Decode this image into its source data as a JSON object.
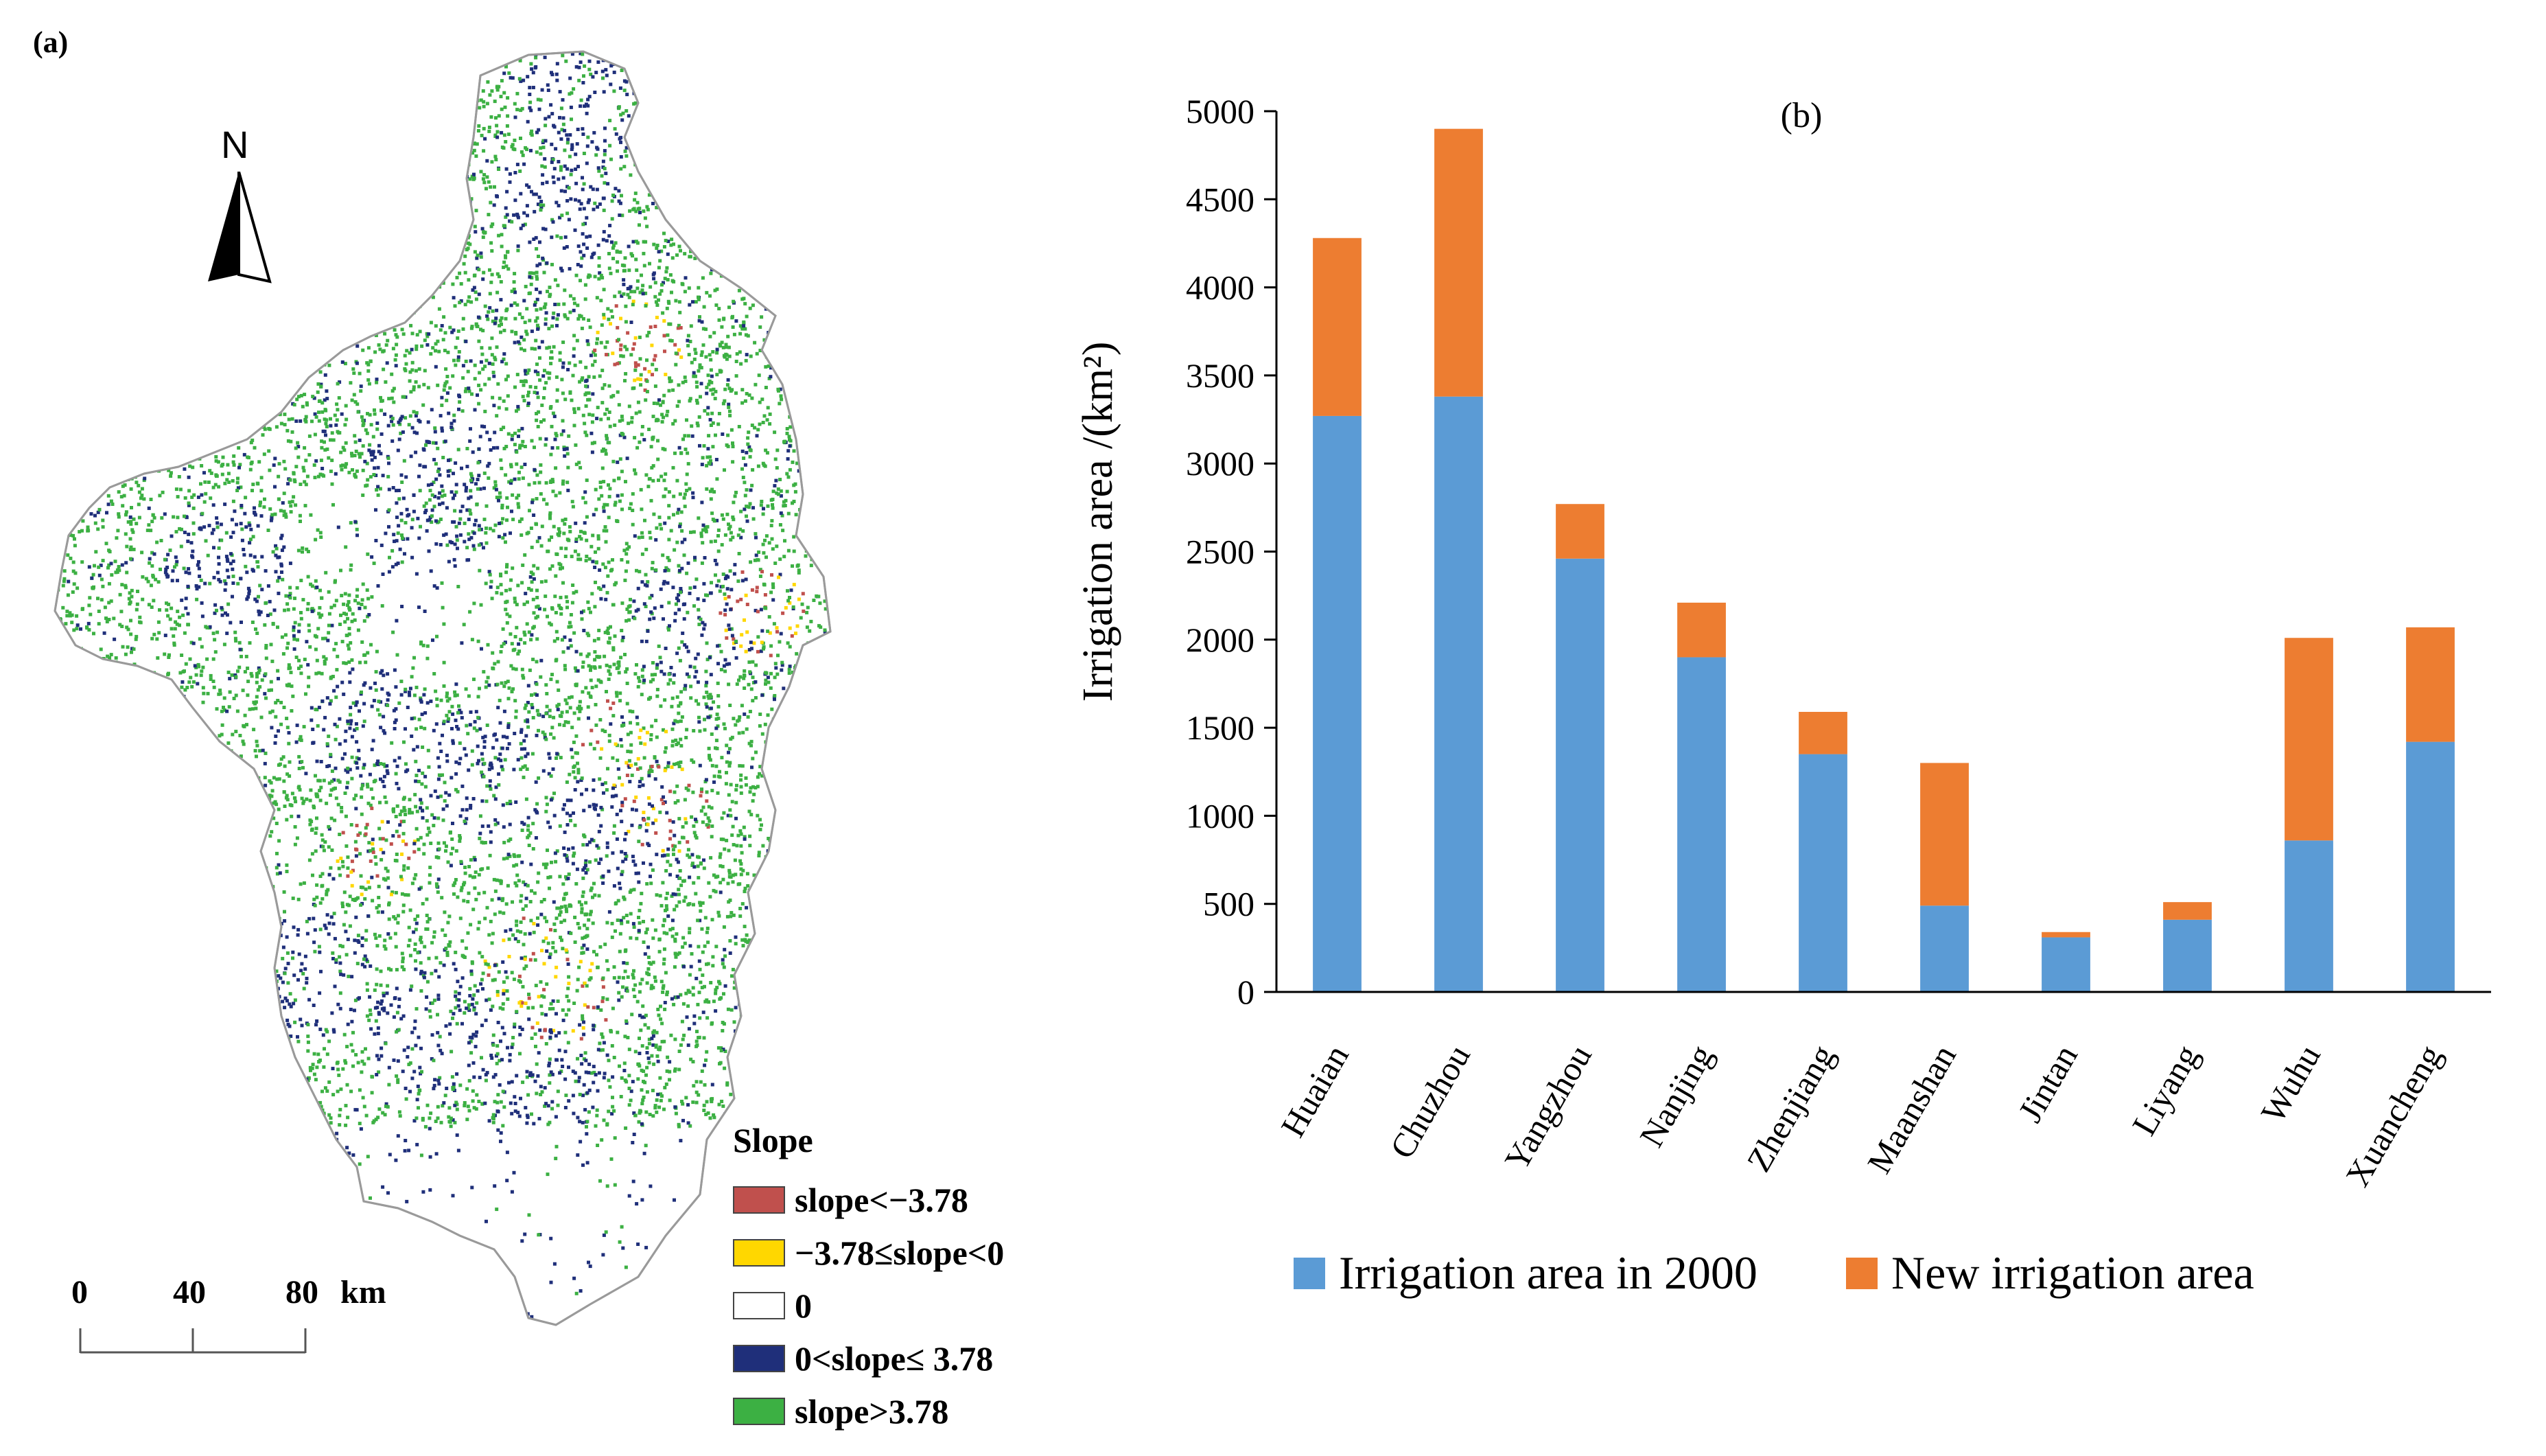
{
  "panel_a": {
    "label": "(a)",
    "north": "N",
    "scale_bar": {
      "ticks": [
        "0",
        "40",
        "80"
      ],
      "unit": "km"
    },
    "legend": {
      "title": "Slope",
      "items": [
        {
          "label": "slope<−3.78",
          "color": "#c0504d"
        },
        {
          "label": "−3.78≤slope<0",
          "color": "#ffd700"
        },
        {
          "label": "0",
          "color": "#ffffff"
        },
        {
          "label": "0<slope≤ 3.78",
          "color": "#1f2f7a"
        },
        {
          "label": "slope>3.78",
          "color": "#3cb043"
        }
      ]
    }
  },
  "chart_data": {
    "type": "bar",
    "stacked": true,
    "panel_label": "(b)",
    "ylabel": "Irrigation area /(km²)",
    "xlabel": "",
    "ylim": [
      0,
      5000
    ],
    "yticks": [
      0,
      500,
      1000,
      1500,
      2000,
      2500,
      3000,
      3500,
      4000,
      4500,
      5000
    ],
    "categories": [
      "Huaian",
      "Chuzhou",
      "Yangzhou",
      "Nanjing",
      "Zhenjiang",
      "Maanshan",
      "Jintan",
      "Liyang",
      "Wuhu",
      "Xuancheng"
    ],
    "series": [
      {
        "name": "Irrigation area in 2000",
        "color": "#5b9bd5",
        "values": [
          3270,
          3380,
          2460,
          1900,
          1350,
          490,
          310,
          410,
          860,
          1420
        ]
      },
      {
        "name": "New irrigation area",
        "color": "#ed7d31",
        "values": [
          1010,
          1520,
          310,
          310,
          240,
          810,
          30,
          100,
          1150,
          650
        ]
      }
    ],
    "legend_position": "bottom"
  }
}
